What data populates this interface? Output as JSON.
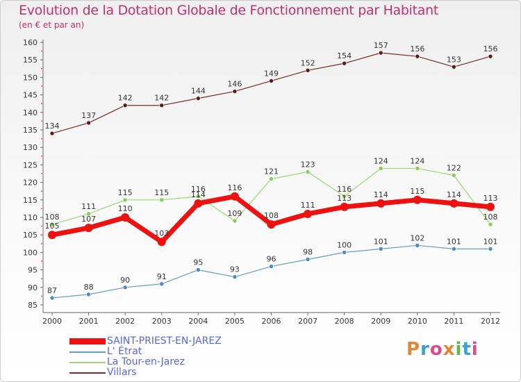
{
  "header": {
    "title": "Evolution de la Dotation Globale de Fonctionnement par Habitant",
    "subtitle": "(en € et par an)"
  },
  "logo": {
    "text": "Proxiti",
    "letter_colors": [
      "#e0883a",
      "#3aa0d8",
      "#e04a8a",
      "#e0883a",
      "#5ab848",
      "#3aa0d8",
      "#e04a8a"
    ]
  },
  "chart_data": {
    "type": "line",
    "x": [
      "2000",
      "2001",
      "2002",
      "2003",
      "2004",
      "2005",
      "2006",
      "2007",
      "2008",
      "2009",
      "2010",
      "2011",
      "2012"
    ],
    "ylim": [
      85,
      160
    ],
    "yticks": [
      85,
      90,
      95,
      100,
      105,
      110,
      115,
      120,
      125,
      130,
      135,
      140,
      145,
      150,
      155,
      160
    ],
    "grid": false,
    "legend_position": "bottom-left",
    "series": [
      {
        "name": "Villars",
        "color": "#7a2a2a",
        "values": [
          134,
          137,
          142,
          142,
          144,
          146,
          149,
          152,
          154,
          157,
          156,
          153,
          156
        ]
      },
      {
        "name": "La Tour-en-Jarez",
        "color": "#99d870",
        "values": [
          108,
          111,
          115,
          115,
          116,
          109,
          121,
          123,
          116,
          124,
          124,
          122,
          108
        ]
      },
      {
        "name": "SAINT-PRIEST-EN-JAREZ",
        "color": "#ee1111",
        "values": [
          105,
          107,
          110,
          103,
          114,
          116,
          108,
          111,
          113,
          114,
          115,
          114,
          113
        ]
      },
      {
        "name": "L' Étrat",
        "color": "#6699cc",
        "values": [
          87,
          88,
          90,
          91,
          95,
          93,
          96,
          98,
          100,
          101,
          102,
          101,
          101
        ]
      }
    ],
    "legend_order": [
      2,
      3,
      1,
      0
    ]
  }
}
